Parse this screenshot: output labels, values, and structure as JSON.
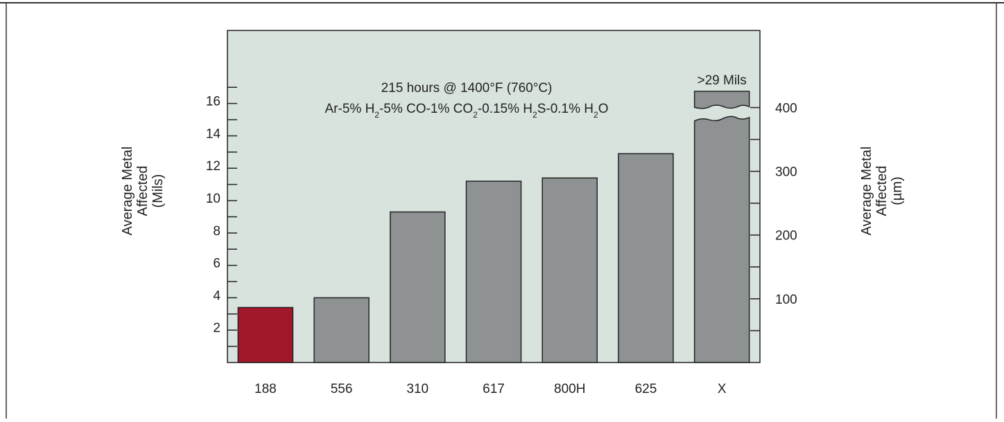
{
  "chart_data": {
    "type": "bar",
    "annotation_line1": "215 hours @ 1400°F (760°C)",
    "annotation_line2_parts": [
      "Ar-5% H",
      "2",
      "-5% CO-1% CO",
      "2",
      "-0.15% H",
      "2",
      "S-0.1% H",
      "2",
      "O"
    ],
    "categories": [
      "188",
      "556",
      "310",
      "617",
      "800H",
      "625",
      "X"
    ],
    "values": [
      3.4,
      4.0,
      9.3,
      11.2,
      11.4,
      12.9,
      29
    ],
    "left_axis": {
      "label_lines": [
        "Average Metal",
        "Affected",
        "(Mils)"
      ],
      "ticks": [
        2,
        4,
        6,
        8,
        10,
        12,
        14,
        16
      ],
      "range": [
        0,
        20
      ]
    },
    "right_axis": {
      "label_lines": [
        "Average Metal",
        "Affected",
        "(µm)"
      ],
      "ticks": [
        100,
        200,
        300,
        400
      ],
      "unit_factor": 25.4
    },
    "broken_bar_label": ">29 Mils",
    "highlight_category": "188",
    "colors": {
      "plot_background": "#d8e3dd",
      "bar_gray": "#8e9293",
      "bar_highlight": "#a3172a",
      "bar_stroke": "#222222"
    }
  }
}
